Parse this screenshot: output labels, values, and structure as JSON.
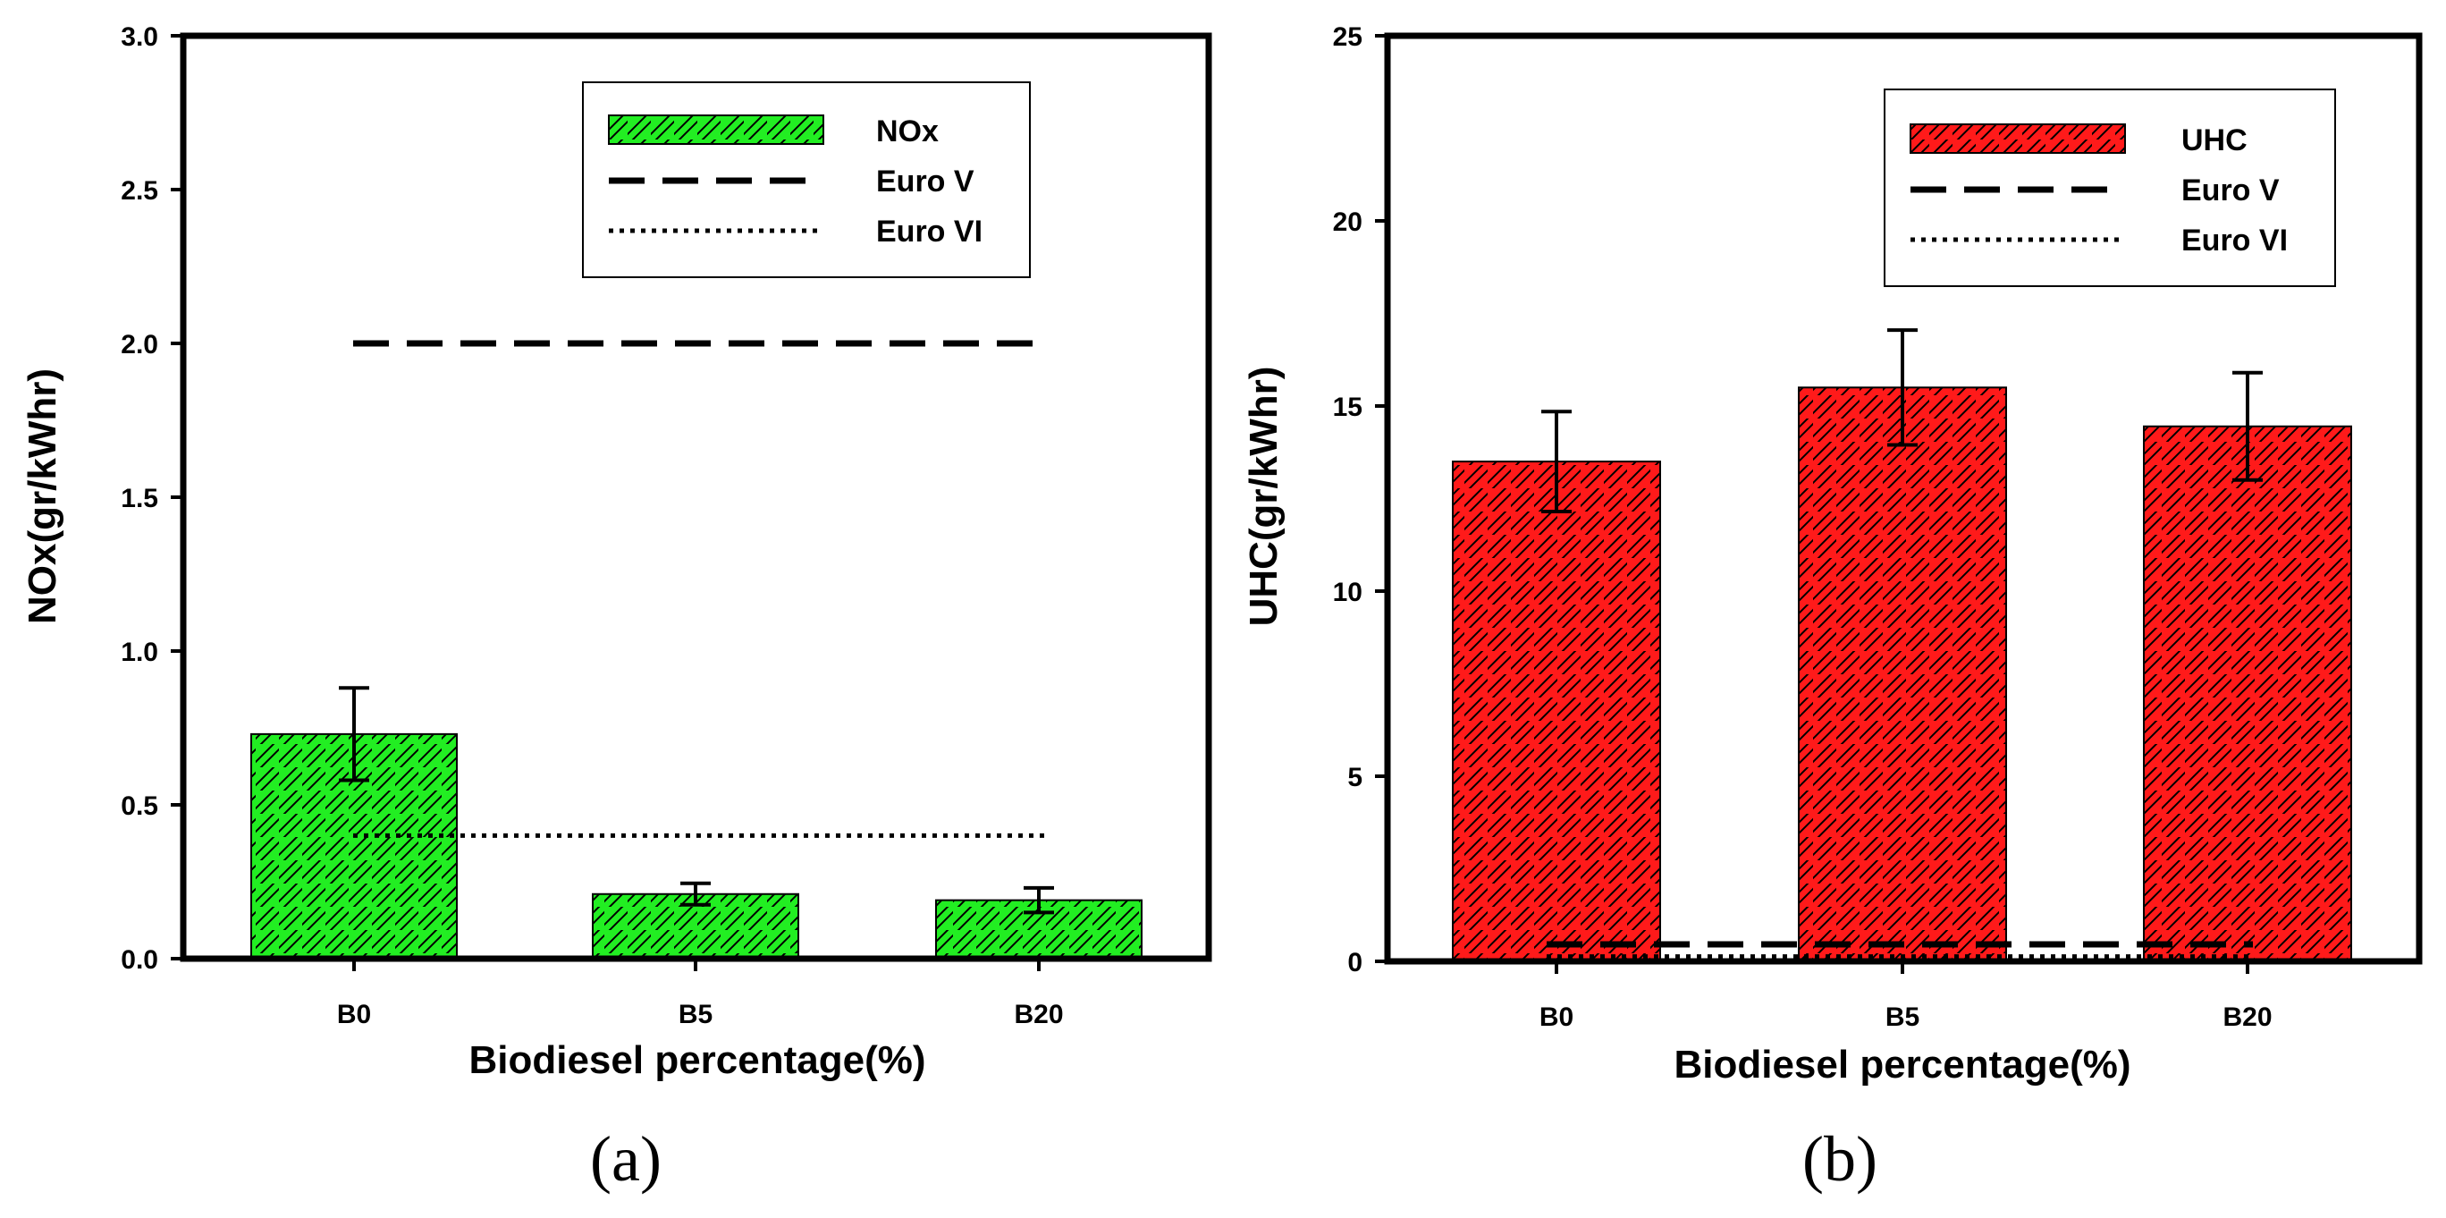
{
  "chart_data": [
    {
      "type": "bar",
      "panel_label": "(a)",
      "categories": [
        "B0",
        "B5",
        "B20"
      ],
      "series": [
        {
          "name": "NOx",
          "values": [
            0.73,
            0.21,
            0.19
          ],
          "errors": [
            0.15,
            0.035,
            0.04
          ]
        }
      ],
      "reference_lines": [
        {
          "name": "Euro V",
          "value": 2.0,
          "style": "dashed"
        },
        {
          "name": "Euro VI",
          "value": 0.4,
          "style": "dotted"
        }
      ],
      "xlabel": "Biodiesel percentage(%)",
      "ylabel": "NOx(gr/kWhr)",
      "ylim": [
        0,
        3.0
      ],
      "yticks": [
        "0.0",
        "0.5",
        "1.0",
        "1.5",
        "2.0",
        "2.5",
        "3.0"
      ],
      "ytick_values": [
        0,
        0.5,
        1.0,
        1.5,
        2.0,
        2.5,
        3.0
      ],
      "legend": [
        "NOx",
        "Euro V",
        "Euro VI"
      ],
      "legend_position": "top-right",
      "bar_color": "#22ee22"
    },
    {
      "type": "bar",
      "panel_label": "(b)",
      "categories": [
        "B0",
        "B5",
        "B20"
      ],
      "series": [
        {
          "name": "UHC",
          "values": [
            13.5,
            15.5,
            14.45
          ],
          "errors": [
            1.35,
            1.55,
            1.45
          ]
        }
      ],
      "reference_lines": [
        {
          "name": "Euro V",
          "value": 0.46,
          "style": "dashed"
        },
        {
          "name": "Euro VI",
          "value": 0.13,
          "style": "dotted"
        }
      ],
      "xlabel": "Biodiesel percentage(%)",
      "ylabel": "UHC(gr/kWhr)",
      "ylim": [
        0,
        25
      ],
      "yticks": [
        "0",
        "5",
        "10",
        "15",
        "20",
        "25"
      ],
      "ytick_values": [
        0,
        5,
        10,
        15,
        20,
        25
      ],
      "legend": [
        "UHC",
        "Euro V",
        "Euro VI"
      ],
      "legend_position": "top-right",
      "bar_color": "#ff1a1a"
    }
  ]
}
